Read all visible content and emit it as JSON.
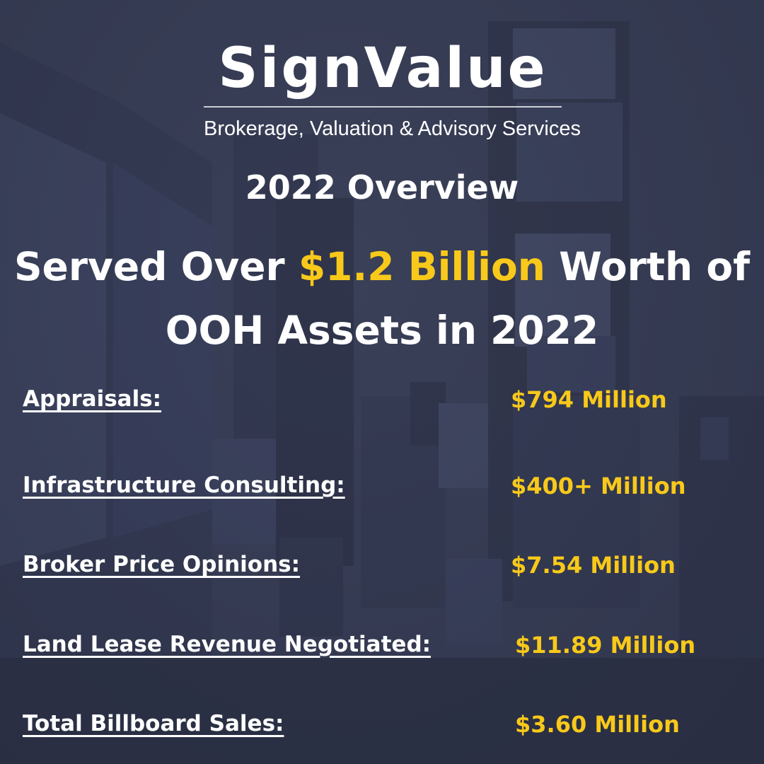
{
  "brand": {
    "logo_text": "SignValue",
    "tagline": "Brokerage, Valuation & Advisory Services"
  },
  "overview_title": "2022 Overview",
  "headline": {
    "part1": "Served Over ",
    "highlight": "$1.2 Billion",
    "part2": " Worth of",
    "line2": "OOH Assets in 2022"
  },
  "stats": [
    {
      "label": "Appraisals:",
      "value": "$794 Million"
    },
    {
      "label": "Infrastructure Consulting:",
      "value": "$400+ Million"
    },
    {
      "label": "Broker Price Opinions:",
      "value": "$7.54 Million"
    },
    {
      "label": "Land Lease Revenue Negotiated:",
      "value": "$11.89 Million"
    },
    {
      "label": "Total Billboard Sales:",
      "value": "$3.60 Million"
    }
  ],
  "colors": {
    "background": "#3a4058",
    "text": "#ffffff",
    "accent": "#f8c91a"
  }
}
